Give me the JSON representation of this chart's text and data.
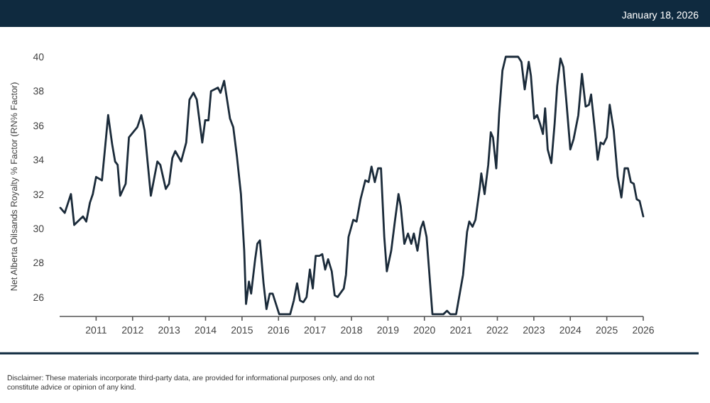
{
  "chart_data": {
    "type": "line",
    "ylabel": "Net Alberta Oilsands Royalty % Factor (RN% Factor)",
    "annotations": [
      "January 18, 2026",
      "Disclaimer: These materials incorporate third-party data, are provided for informational purposes only, and do not constitute advice or opinion of any kind."
    ],
    "xlim": [
      2010,
      2026
    ],
    "xticks": [
      2011,
      2012,
      2013,
      2014,
      2015,
      2016,
      2017,
      2018,
      2019,
      2020,
      2021,
      2022,
      2023,
      2024,
      2025,
      2026
    ],
    "ylim": [
      24.87,
      40
    ],
    "yticks": [
      26,
      28,
      30,
      32,
      34,
      36,
      38,
      40
    ],
    "grid": false,
    "marker": "none",
    "line_style": "solid",
    "series": [
      {
        "color": "#1b2b3a",
        "x": [
          2010.02,
          2010.14,
          2010.31,
          2010.4,
          2010.64,
          2010.73,
          2010.83,
          2010.91,
          2011.0,
          2011.16,
          2011.25,
          2011.33,
          2011.44,
          2011.52,
          2011.59,
          2011.66,
          2011.81,
          2011.9,
          2012.13,
          2012.24,
          2012.33,
          2012.5,
          2012.68,
          2012.76,
          2012.91,
          2013.0,
          2013.09,
          2013.17,
          2013.33,
          2013.47,
          2013.56,
          2013.67,
          2013.76,
          2013.91,
          2013.99,
          2014.08,
          2014.15,
          2014.34,
          2014.41,
          2014.51,
          2014.67,
          2014.76,
          2014.86,
          2014.97,
          2015.06,
          2015.11,
          2015.19,
          2015.25,
          2015.36,
          2015.42,
          2015.49,
          2015.59,
          2015.67,
          2015.76,
          2015.84,
          2016.02,
          2016.32,
          2016.42,
          2016.51,
          2016.59,
          2016.68,
          2016.77,
          2016.86,
          2016.94,
          2017.02,
          2017.12,
          2017.2,
          2017.28,
          2017.36,
          2017.46,
          2017.54,
          2017.62,
          2017.79,
          2017.85,
          2017.92,
          2018.05,
          2018.14,
          2018.25,
          2018.38,
          2018.47,
          2018.55,
          2018.64,
          2018.73,
          2018.81,
          2018.9,
          2018.97,
          2019.09,
          2019.19,
          2019.29,
          2019.35,
          2019.45,
          2019.55,
          2019.64,
          2019.71,
          2019.81,
          2019.9,
          2019.97,
          2020.06,
          2020.22,
          2020.52,
          2020.62,
          2020.71,
          2020.87,
          2021.06,
          2021.17,
          2021.23,
          2021.32,
          2021.4,
          2021.52,
          2021.56,
          2021.65,
          2021.75,
          2021.82,
          2021.88,
          2021.97,
          2022.05,
          2022.14,
          2022.23,
          2022.57,
          2022.66,
          2022.75,
          2022.86,
          2022.92,
          2023.01,
          2023.09,
          2023.17,
          2023.25,
          2023.31,
          2023.38,
          2023.48,
          2023.57,
          2023.64,
          2023.73,
          2023.81,
          2023.9,
          2024.0,
          2024.09,
          2024.22,
          2024.32,
          2024.42,
          2024.51,
          2024.57,
          2024.68,
          2024.75,
          2024.83,
          2024.91,
          2025.0,
          2025.08,
          2025.19,
          2025.3,
          2025.4,
          2025.49,
          2025.58,
          2025.66,
          2025.74,
          2025.82,
          2025.9,
          2026.0
        ],
        "values": [
          31.2,
          30.9,
          32.0,
          30.2,
          30.7,
          30.4,
          31.5,
          32.0,
          33.0,
          32.8,
          34.8,
          36.6,
          34.9,
          33.9,
          33.7,
          31.9,
          32.6,
          35.3,
          35.9,
          36.6,
          35.7,
          31.9,
          33.9,
          33.7,
          32.3,
          32.6,
          34.1,
          34.5,
          33.9,
          35.0,
          37.5,
          37.9,
          37.5,
          35.0,
          36.3,
          36.3,
          38.0,
          38.2,
          37.9,
          38.6,
          36.4,
          35.9,
          34.2,
          32.0,
          28.7,
          25.6,
          26.9,
          26.2,
          28.2,
          29.1,
          29.3,
          26.8,
          25.3,
          26.2,
          26.2,
          25.0,
          25.0,
          25.8,
          26.8,
          25.8,
          25.7,
          26.0,
          27.6,
          26.5,
          28.4,
          28.4,
          28.5,
          27.6,
          28.2,
          27.5,
          26.1,
          26.0,
          26.5,
          27.3,
          29.5,
          30.5,
          30.4,
          31.7,
          32.8,
          32.7,
          33.6,
          32.7,
          33.5,
          33.5,
          29.5,
          27.5,
          28.7,
          30.4,
          32.0,
          31.3,
          29.1,
          29.7,
          29.1,
          29.7,
          28.7,
          30.0,
          30.4,
          29.5,
          25.0,
          25.0,
          25.2,
          25.0,
          25.0,
          27.3,
          29.8,
          30.4,
          30.1,
          30.5,
          32.4,
          33.2,
          32.0,
          33.7,
          35.6,
          35.3,
          33.5,
          36.7,
          39.2,
          40.0,
          40.0,
          39.7,
          38.1,
          39.7,
          38.9,
          36.4,
          36.6,
          36.1,
          35.5,
          37.0,
          34.6,
          33.8,
          36.1,
          38.3,
          39.9,
          39.4,
          37.2,
          34.6,
          35.2,
          36.6,
          39.0,
          37.1,
          37.2,
          37.8,
          35.6,
          34.0,
          35.0,
          34.9,
          35.3,
          37.2,
          35.7,
          33.0,
          31.8,
          33.5,
          33.5,
          32.7,
          32.6,
          31.7,
          31.6,
          30.7
        ]
      }
    ]
  }
}
